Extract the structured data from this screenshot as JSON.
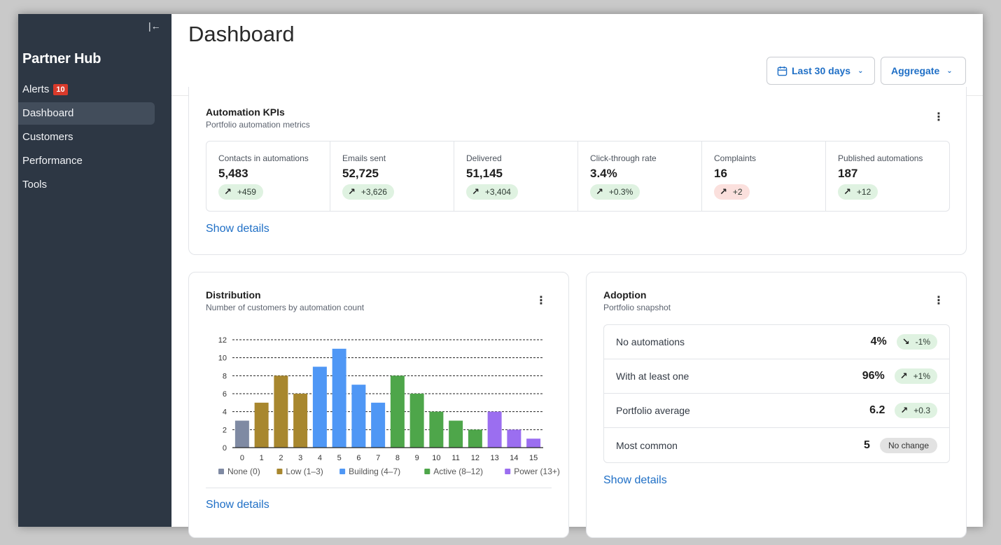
{
  "sidebar": {
    "brand": "Partner Hub",
    "collapse_icon": "collapse-left-icon",
    "items": [
      {
        "label": "Alerts",
        "badge": "10",
        "active": false
      },
      {
        "label": "Dashboard",
        "active": true
      },
      {
        "label": "Customers",
        "active": false
      },
      {
        "label": "Performance",
        "active": false
      },
      {
        "label": "Tools",
        "active": false
      }
    ]
  },
  "header": {
    "title": "Dashboard",
    "date_range": "Last 30 days",
    "view": "Aggregate",
    "date_icon": "calendar-icon"
  },
  "kpi_card": {
    "title": "Automation KPIs",
    "subtitle": "Portfolio automation metrics",
    "show_details": "Show details",
    "items": [
      {
        "label": "Contacts in automations",
        "value": "5,483",
        "delta": "+459",
        "trend": "up"
      },
      {
        "label": "Emails sent",
        "value": "52,725",
        "delta": "+3,626",
        "trend": "up"
      },
      {
        "label": "Delivered",
        "value": "51,145",
        "delta": "+3,404",
        "trend": "up"
      },
      {
        "label": "Click-through rate",
        "value": "3.4%",
        "delta": "+0.3%",
        "trend": "up"
      },
      {
        "label": "Complaints",
        "value": "16",
        "delta": "+2",
        "trend": "bad"
      },
      {
        "label": "Published automations",
        "value": "187",
        "delta": "+12",
        "trend": "up"
      }
    ]
  },
  "distribution_card": {
    "title": "Distribution",
    "subtitle": "Number of customers by automation count",
    "show_details": "Show details"
  },
  "adoption_card": {
    "title": "Adoption",
    "subtitle": "Portfolio snapshot",
    "show_details": "Show details",
    "rows": [
      {
        "label": "No automations",
        "value": "4%",
        "delta": "-1%",
        "trend": "down"
      },
      {
        "label": "With at least one",
        "value": "96%",
        "delta": "+1%",
        "trend": "up"
      },
      {
        "label": "Portfolio average",
        "value": "6.2",
        "delta": "+0.3",
        "trend": "up"
      },
      {
        "label": "Most common",
        "value": "5",
        "delta": "No change",
        "trend": "neutral"
      }
    ]
  },
  "chart_data": {
    "type": "bar",
    "title": "",
    "xlabel": "",
    "ylabel": "",
    "ylim": [
      0,
      12
    ],
    "yticks": [
      0,
      2,
      4,
      6,
      8,
      10,
      12
    ],
    "grid": true,
    "legend_position": "bottom",
    "categories": [
      "0",
      "1",
      "2",
      "3",
      "4",
      "5",
      "6",
      "7",
      "8",
      "9",
      "10",
      "11",
      "12",
      "13",
      "14",
      "15"
    ],
    "values": [
      3,
      5,
      8,
      6,
      9,
      11,
      7,
      5,
      8,
      6,
      4,
      3,
      2,
      4,
      2,
      1
    ],
    "groups": [
      {
        "name": "None (0)",
        "color": "#7f8aa3",
        "categories": [
          "0"
        ]
      },
      {
        "name": "Low (1–3)",
        "color": "#a8872e",
        "categories": [
          "1",
          "2",
          "3"
        ]
      },
      {
        "name": "Building (4–7)",
        "color": "#4f97f5",
        "categories": [
          "4",
          "5",
          "6",
          "7"
        ]
      },
      {
        "name": "Active (8–12)",
        "color": "#4ea64a",
        "categories": [
          "8",
          "9",
          "10",
          "11",
          "12"
        ]
      },
      {
        "name": "Power (13+)",
        "color": "#9b6ef0",
        "categories": [
          "13",
          "14",
          "15"
        ]
      }
    ]
  },
  "colors": {
    "accent": "#1f6fc6",
    "sidebar": "#2d3744",
    "positive_bg": "#dff2e1",
    "negative_bg": "#fbe0dd",
    "alert_badge": "#d93a2b"
  }
}
